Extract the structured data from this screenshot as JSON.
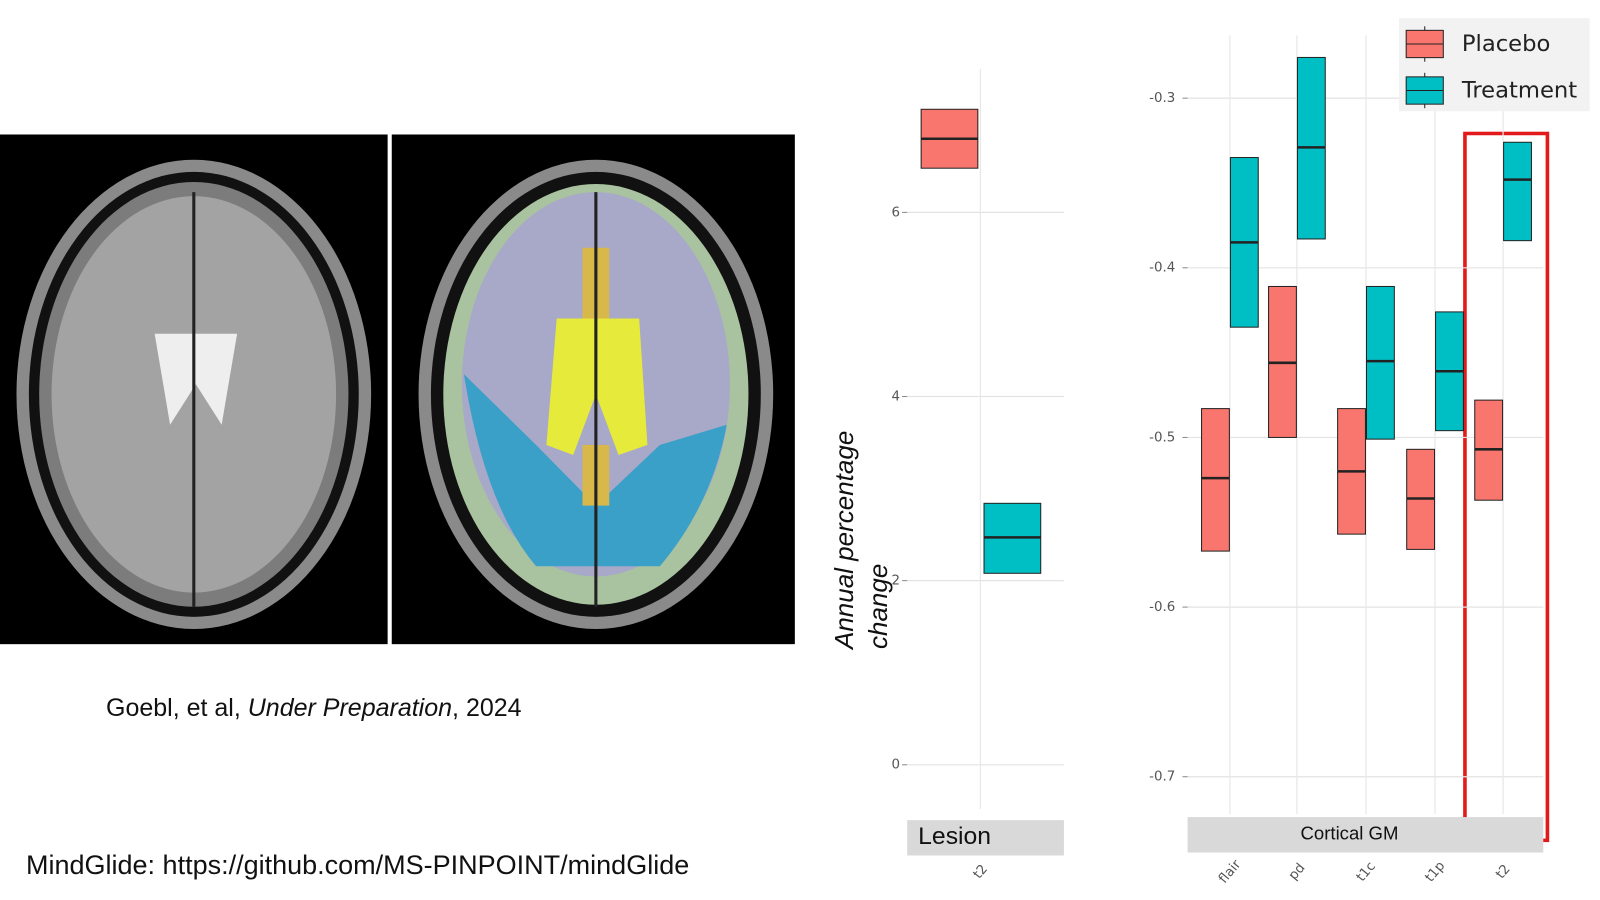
{
  "chart_data": [
    {
      "type": "crossbar",
      "panel": "Lesion",
      "categories": [
        "t2"
      ],
      "series": [
        {
          "color": "#f8766d",
          "lower": [
            6.48
          ],
          "values": [
            6.8
          ],
          "upper": [
            7.12
          ]
        },
        {
          "color": "#00bfc4",
          "lower": [
            2.08
          ],
          "values": [
            2.47
          ],
          "upper": [
            2.84
          ]
        }
      ],
      "ylim": [
        -0.48,
        7.56
      ],
      "yticks": [
        0,
        2,
        4,
        6
      ],
      "grid": true
    },
    {
      "type": "crossbar",
      "panel": "Cortical GM",
      "categories": [
        "flair",
        "pd",
        "t1c",
        "t1p",
        "t2"
      ],
      "series": [
        {
          "name": "Placebo",
          "color": "#f8766d",
          "lower": [
            -0.567,
            -0.5,
            -0.557,
            -0.566,
            -0.537
          ],
          "values": [
            -0.524,
            -0.456,
            -0.52,
            -0.536,
            -0.507
          ],
          "upper": [
            -0.483,
            -0.411,
            -0.483,
            -0.507,
            -0.478
          ]
        },
        {
          "name": "Treatment",
          "color": "#00bfc4",
          "lower": [
            -0.435,
            -0.383,
            -0.501,
            -0.496,
            -0.384
          ],
          "values": [
            -0.385,
            -0.329,
            -0.455,
            -0.461,
            -0.348
          ],
          "upper": [
            -0.335,
            -0.276,
            -0.411,
            -0.426,
            -0.326
          ]
        }
      ],
      "ylim": [
        -0.722,
        -0.263
      ],
      "yticks": [
        -0.7,
        -0.6,
        -0.5,
        -0.4,
        -0.3
      ],
      "grid": true,
      "legend": "top-right"
    }
  ],
  "ylabel": "Annual percentage change",
  "citation": [
    "Goebl, et al, ",
    "Under Preparation",
    ", 2024"
  ],
  "footer": "MindGlide: https://github.com/MS-PINPOINT/mindGlide"
}
